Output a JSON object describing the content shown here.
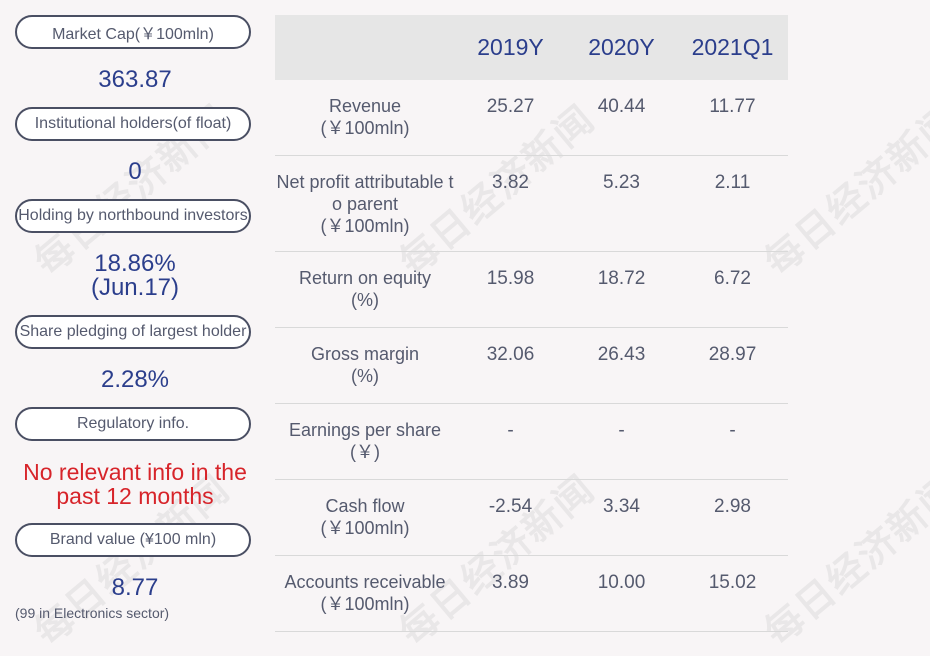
{
  "watermark": "每日经济新闻",
  "sidebar": {
    "market_cap_label": "Market Cap(￥100mln)",
    "market_cap_value": "363.87",
    "institutional_label": "Institutional holders(of float)",
    "institutional_value": "0",
    "northbound_label": "Holding by northbound investors",
    "northbound_value_line1": "18.86%",
    "northbound_value_line2": "(Jun.17)",
    "pledging_label": "Share pledging of largest holder",
    "pledging_value": "2.28%",
    "regulatory_label": "Regulatory info.",
    "regulatory_value_line1": "No relevant info in the",
    "regulatory_value_line2": "past 12 months",
    "brand_label": "Brand value (¥100 mln)",
    "brand_value": "8.77",
    "brand_sub": "(99 in Electronics sector)"
  },
  "table": {
    "headers": [
      "2019Y",
      "2020Y",
      "2021Q1"
    ],
    "rows": [
      {
        "label1": "Revenue",
        "label2": "(￥100mln)",
        "label3": "",
        "values": [
          "25.27",
          "40.44",
          "11.77"
        ]
      },
      {
        "label1": "Net profit attributable t",
        "label2": "o parent",
        "label3": "(￥100mln)",
        "values": [
          "3.82",
          "5.23",
          "2.11"
        ]
      },
      {
        "label1": "Return on equity",
        "label2": "(%)",
        "label3": "",
        "values": [
          "15.98",
          "18.72",
          "6.72"
        ]
      },
      {
        "label1": "Gross margin",
        "label2": "(%)",
        "label3": "",
        "values": [
          "32.06",
          "26.43",
          "28.97"
        ]
      },
      {
        "label1": "Earnings per share",
        "label2": "(￥)",
        "label3": "",
        "values": [
          "-",
          "-",
          "-"
        ]
      },
      {
        "label1": "Cash flow",
        "label2": "(￥100mln)",
        "label3": "",
        "values": [
          "-2.54",
          "3.34",
          "2.98"
        ]
      },
      {
        "label1": "Accounts receivable",
        "label2": "(￥100mln)",
        "label3": "",
        "values": [
          "3.89",
          "10.00",
          "15.02"
        ]
      }
    ]
  }
}
